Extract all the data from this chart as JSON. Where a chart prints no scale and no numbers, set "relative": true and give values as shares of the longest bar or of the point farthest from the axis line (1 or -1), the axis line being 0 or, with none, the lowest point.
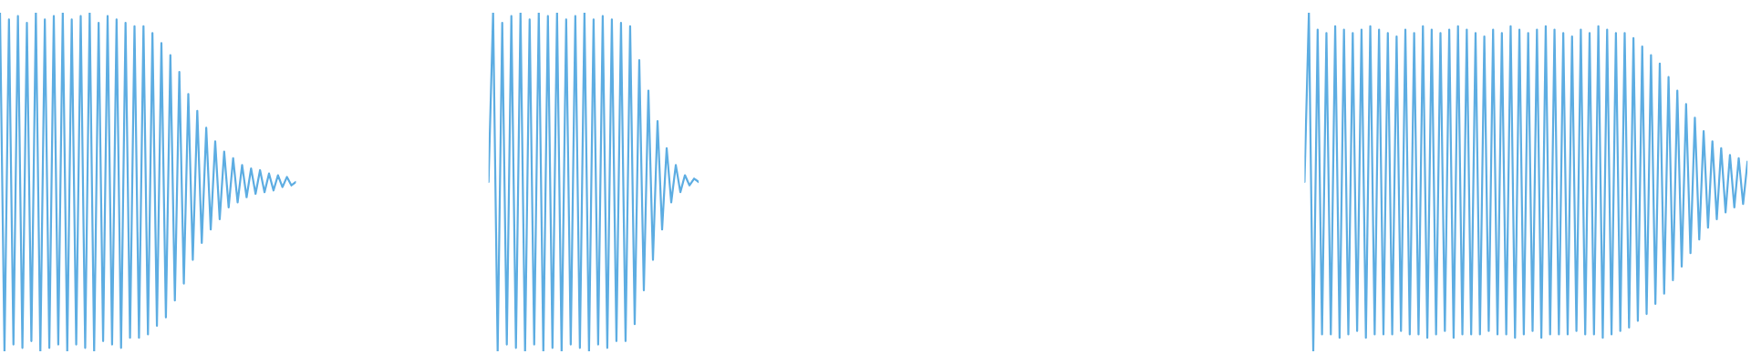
{
  "chart_data": [
    {
      "type": "line",
      "relative": true,
      "categories": [
        null,
        null,
        null,
        null,
        null,
        null,
        null,
        null,
        null,
        null,
        null,
        null,
        null,
        null,
        null,
        null,
        null,
        null,
        null,
        null,
        null,
        null,
        null,
        null,
        null,
        null,
        null,
        null,
        null,
        null,
        null,
        null,
        null,
        null,
        null,
        null,
        null,
        null,
        null,
        null,
        null,
        null,
        null,
        null,
        null,
        null,
        null,
        null,
        null,
        null,
        null,
        null,
        null,
        null,
        null,
        null,
        null,
        null,
        null,
        null,
        null,
        null,
        null,
        null,
        null,
        null,
        null
      ],
      "series": [
        {
          "color": "#5dade2",
          "values": [
            1,
            0,
            0.98,
            0.02,
            0.99,
            0.01,
            0.97,
            0.03,
            1,
            0,
            0.98,
            0.01,
            0.99,
            0.02,
            1,
            0,
            0.98,
            0.02,
            0.99,
            0.01,
            1,
            0,
            0.97,
            0.03,
            0.99,
            0.02,
            0.98,
            0.01,
            0.97,
            0.04,
            0.96,
            0.04,
            0.96,
            0.05,
            0.94,
            0.075,
            0.91,
            0.1,
            0.875,
            0.15,
            0.825,
            0.2,
            0.76,
            0.27,
            0.71,
            0.32,
            0.66,
            0.36,
            0.62,
            0.39,
            0.59,
            0.425,
            0.57,
            0.44,
            0.55,
            0.455,
            0.54,
            0.465,
            0.535,
            0.47,
            0.525,
            0.475,
            0.52,
            0.485,
            0.515,
            0.49,
            0.5
          ]
        }
      ]
    },
    {
      "type": "line",
      "relative": true,
      "categories": [
        null,
        null,
        null,
        null,
        null,
        null,
        null,
        null,
        null,
        null,
        null,
        null,
        null,
        null,
        null,
        null,
        null,
        null,
        null,
        null,
        null,
        null,
        null,
        null,
        null,
        null,
        null,
        null,
        null,
        null,
        null,
        null,
        null,
        null,
        null,
        null,
        null,
        null,
        null,
        null,
        null,
        null,
        null,
        null,
        null,
        null,
        null
      ],
      "series": [
        {
          "color": "#5dade2",
          "values": [
            0.5,
            1,
            0,
            0.97,
            0.02,
            0.99,
            0.01,
            1,
            0,
            0.98,
            0.02,
            1,
            0,
            0.99,
            0.01,
            1,
            0,
            0.98,
            0.02,
            0.99,
            0.01,
            1,
            0,
            0.98,
            0.02,
            0.99,
            0.01,
            0.98,
            0.03,
            0.97,
            0.03,
            0.96,
            0.08,
            0.86,
            0.18,
            0.77,
            0.27,
            0.68,
            0.36,
            0.6,
            0.44,
            0.55,
            0.47,
            0.52,
            0.49,
            0.51,
            0.5
          ]
        }
      ]
    },
    {
      "type": "line",
      "relative": true,
      "categories": [
        null,
        null,
        null,
        null,
        null,
        null,
        null,
        null,
        null,
        null,
        null,
        null,
        null,
        null,
        null,
        null,
        null,
        null,
        null,
        null,
        null,
        null,
        null,
        null,
        null,
        null,
        null,
        null,
        null,
        null,
        null,
        null,
        null,
        null,
        null,
        null,
        null,
        null,
        null,
        null,
        null,
        null,
        null,
        null,
        null,
        null,
        null,
        null,
        null,
        null,
        null,
        null,
        null,
        null,
        null,
        null,
        null,
        null,
        null,
        null,
        null,
        null,
        null,
        null,
        null,
        null,
        null,
        null,
        null,
        null,
        null,
        null,
        null,
        null,
        null,
        null,
        null,
        null,
        null,
        null,
        null,
        null,
        null,
        null,
        null,
        null,
        null,
        null,
        null,
        null,
        null,
        null,
        null,
        null,
        null,
        null,
        null,
        null,
        null,
        null,
        null,
        null
      ],
      "series": [
        {
          "color": "#5dade2",
          "values": [
            0.5,
            1,
            0,
            0.95,
            0.05,
            0.94,
            0.05,
            0.96,
            0.04,
            0.95,
            0.05,
            0.94,
            0.06,
            0.95,
            0.04,
            0.96,
            0.05,
            0.95,
            0.05,
            0.94,
            0.05,
            0.93,
            0.06,
            0.95,
            0.05,
            0.94,
            0.05,
            0.96,
            0.04,
            0.95,
            0.05,
            0.94,
            0.06,
            0.95,
            0.04,
            0.96,
            0.05,
            0.95,
            0.05,
            0.94,
            0.05,
            0.93,
            0.06,
            0.95,
            0.05,
            0.94,
            0.05,
            0.96,
            0.04,
            0.95,
            0.05,
            0.94,
            0.06,
            0.95,
            0.04,
            0.96,
            0.05,
            0.95,
            0.05,
            0.94,
            0.05,
            0.93,
            0.06,
            0.95,
            0.05,
            0.94,
            0.05,
            0.96,
            0.04,
            0.95,
            0.05,
            0.94,
            0.06,
            0.94,
            0.07,
            0.925,
            0.09,
            0.9,
            0.11,
            0.875,
            0.14,
            0.85,
            0.17,
            0.81,
            0.21,
            0.77,
            0.25,
            0.73,
            0.29,
            0.69,
            0.33,
            0.65,
            0.365,
            0.62,
            0.39,
            0.6,
            0.41,
            0.58,
            0.425,
            0.57,
            0.435,
            0.56
          ]
        }
      ]
    }
  ]
}
